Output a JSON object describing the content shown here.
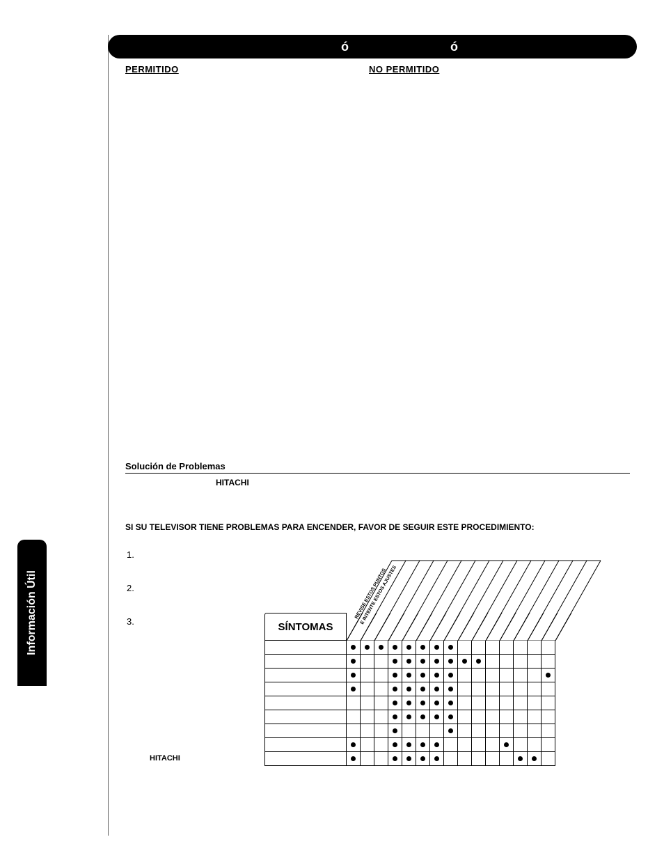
{
  "side_tab": "Información Útil",
  "title_bar": {
    "left_accent": "ó",
    "right_accent": "ó"
  },
  "col_headers": {
    "left": "PERMITIDO",
    "right": "NO PERMITIDO"
  },
  "section": {
    "title": "Solución de Problemas",
    "brand1": "HITACHI",
    "subtitle": "SI SU TELEVISOR TIENE PROBLEMAS PARA ENCENDER, FAVOR DE SEGUIR ESTE PROCEDIMIENTO:",
    "items": [
      "1.",
      "2.",
      "3."
    ],
    "brand2": "HITACHI"
  },
  "table": {
    "sintomas_label": "SÍNTOMAS",
    "diag_hint1": "REVISE ESTOS PUNTOS",
    "diag_hint2": "E INTENTE ESTOS AJUSTES",
    "num_cols": 15,
    "num_rows": 9,
    "dots": [
      [
        1,
        1,
        1,
        1,
        1,
        1,
        1,
        1,
        0,
        0,
        0,
        0,
        0,
        0,
        0
      ],
      [
        1,
        0,
        0,
        1,
        1,
        1,
        1,
        1,
        1,
        1,
        0,
        0,
        0,
        0,
        0
      ],
      [
        1,
        0,
        0,
        1,
        1,
        1,
        1,
        1,
        0,
        0,
        0,
        0,
        0,
        0,
        1
      ],
      [
        1,
        0,
        0,
        1,
        1,
        1,
        1,
        1,
        0,
        0,
        0,
        0,
        0,
        0,
        0
      ],
      [
        0,
        0,
        0,
        1,
        1,
        1,
        1,
        1,
        0,
        0,
        0,
        0,
        0,
        0,
        0
      ],
      [
        0,
        0,
        0,
        1,
        1,
        1,
        1,
        1,
        0,
        0,
        0,
        0,
        0,
        0,
        0
      ],
      [
        0,
        0,
        0,
        1,
        0,
        0,
        0,
        1,
        0,
        0,
        0,
        0,
        0,
        0,
        0
      ],
      [
        1,
        0,
        0,
        1,
        1,
        1,
        1,
        0,
        0,
        0,
        0,
        1,
        0,
        0,
        0
      ],
      [
        1,
        0,
        0,
        1,
        1,
        1,
        1,
        0,
        0,
        0,
        0,
        0,
        1,
        1,
        0
      ]
    ]
  },
  "colors": {
    "black": "#000000",
    "white": "#ffffff"
  }
}
